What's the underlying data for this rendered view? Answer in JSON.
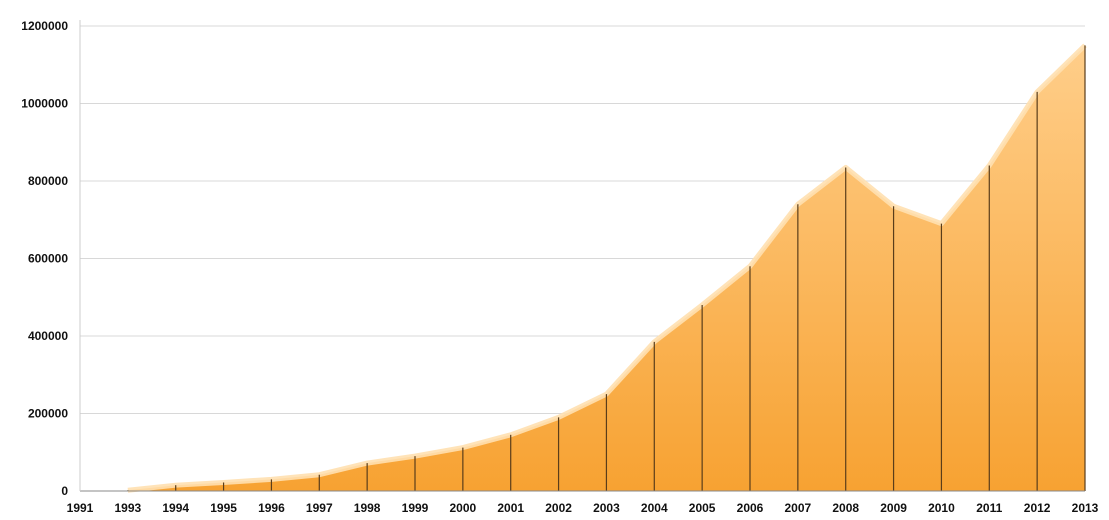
{
  "chart_data": {
    "type": "area",
    "title": "",
    "xlabel": "",
    "ylabel": "",
    "x_tick_labels": [
      "1991",
      "1993",
      "1994",
      "1995",
      "1996",
      "1997",
      "1998",
      "1999",
      "2000",
      "2001",
      "2002",
      "2003",
      "2004",
      "2005",
      "2006",
      "2007",
      "2008",
      "2009",
      "2010",
      "2011",
      "2012",
      "2013"
    ],
    "y_tick_labels": [
      "0",
      "200000",
      "400000",
      "600000",
      "800000",
      "1000000",
      "1200000"
    ],
    "ylim": [
      0,
      1200000
    ],
    "grid": true,
    "colors": {
      "area_top": "#ffce8a",
      "area_bottom": "#f7a232",
      "edge": "#ffe0b0",
      "drop_line": "#5a3d1a",
      "grid": "#d8d8d8",
      "axis": "#888888"
    },
    "series": [
      {
        "x": [
          "1993",
          "1994",
          "1995",
          "1996",
          "1997",
          "1998",
          "1999",
          "2000",
          "2001",
          "2002",
          "2003",
          "2004",
          "2005",
          "2006",
          "2007",
          "2008",
          "2009",
          "2010",
          "2011",
          "2012",
          "2013"
        ],
        "values": [
          2000,
          15000,
          22000,
          30000,
          42000,
          72000,
          90000,
          112000,
          145000,
          190000,
          250000,
          385000,
          480000,
          580000,
          740000,
          835000,
          735000,
          690000,
          840000,
          1030000,
          1150000
        ]
      }
    ]
  }
}
